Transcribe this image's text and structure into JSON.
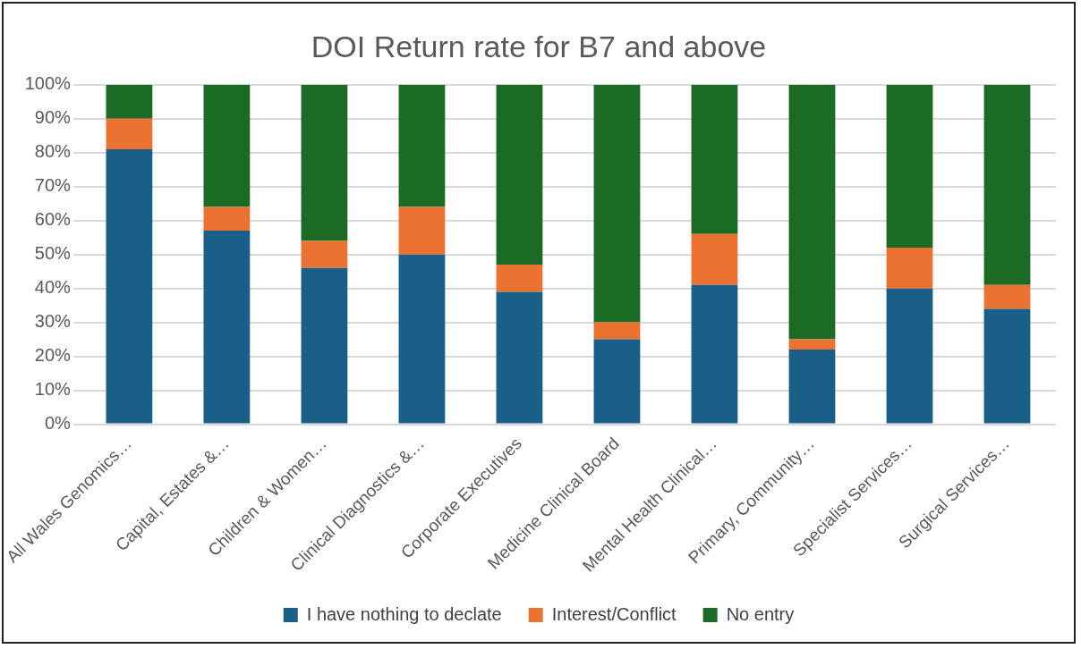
{
  "chart_data": {
    "type": "bar",
    "title": "DOI Return rate for B7 and above",
    "stacked": true,
    "grid": "y",
    "legend": "bottom",
    "categories": [
      "All Wales Genomics…",
      "Capital, Estates &…",
      "Children & Women…",
      "Clinical Diagnostics &…",
      "Corporate Executives",
      "Medicine Clinical Board",
      "Mental Health Clinical…",
      "Primary, Community…",
      "Specialist Services…",
      "Surgical Services…"
    ],
    "ylim": [
      0,
      100
    ],
    "yticks": [
      {
        "value": 0,
        "label": "0%"
      },
      {
        "value": 10,
        "label": "10%"
      },
      {
        "value": 20,
        "label": "20%"
      },
      {
        "value": 30,
        "label": "30%"
      },
      {
        "value": 40,
        "label": "40%"
      },
      {
        "value": 50,
        "label": "50%"
      },
      {
        "value": 60,
        "label": "60%"
      },
      {
        "value": 70,
        "label": "70%"
      },
      {
        "value": 80,
        "label": "80%"
      },
      {
        "value": 90,
        "label": "90%"
      },
      {
        "value": 100,
        "label": "100%"
      }
    ],
    "series": [
      {
        "name": "I have nothing to declate",
        "color": "#1a5f87",
        "values": [
          81,
          57,
          46,
          50,
          39,
          25,
          41,
          22,
          40,
          34
        ]
      },
      {
        "name": "Interest/Conflict",
        "color": "#ec7232",
        "values": [
          9,
          7,
          8,
          14,
          8,
          5,
          15,
          3,
          12,
          7
        ]
      },
      {
        "name": "No entry",
        "color": "#1b6b24",
        "values": [
          10,
          36,
          46,
          36,
          53,
          70,
          44,
          75,
          48,
          59
        ]
      }
    ]
  }
}
